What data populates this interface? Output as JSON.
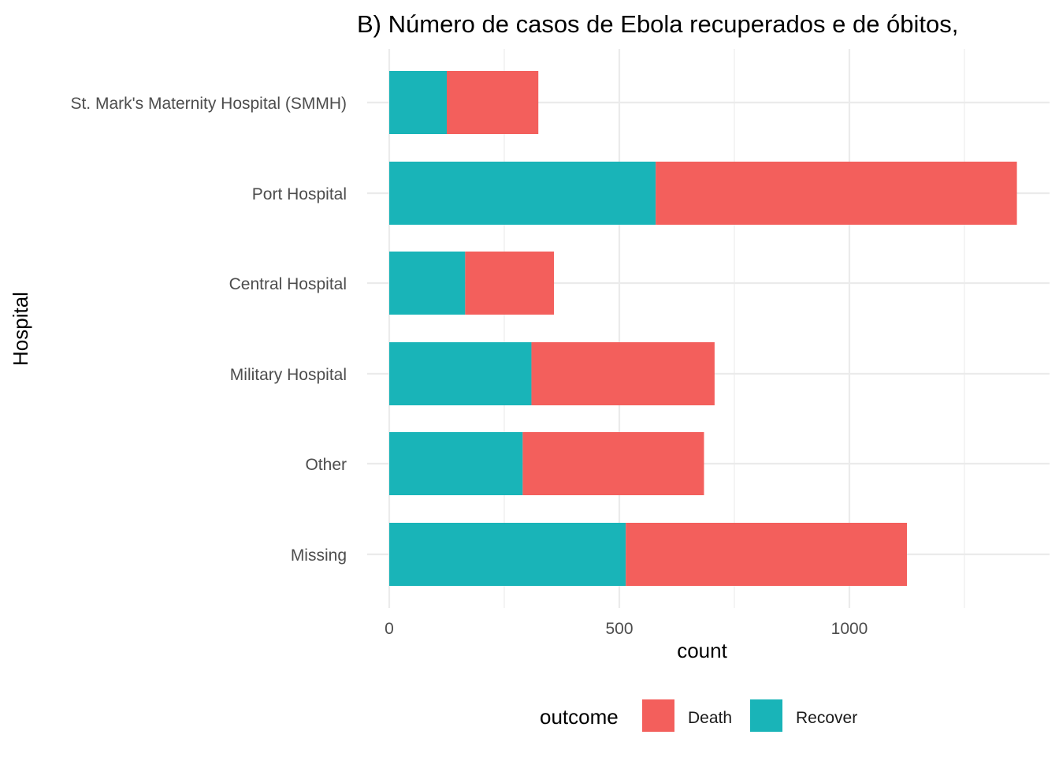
{
  "chart_data": {
    "type": "bar",
    "orientation": "horizontal",
    "stacked": true,
    "title": "B) Número de casos de Ebola recuperados e de óbitos,",
    "xlabel": "count",
    "ylabel": "Hospital",
    "xlim": [
      0,
      1400
    ],
    "x_ticks": [
      0,
      500,
      1000
    ],
    "grid": true,
    "legend": {
      "title": "outcome",
      "position": "bottom"
    },
    "categories": [
      "St. Mark's Maternity Hospital (SMMH)",
      "Port Hospital",
      "Central Hospital",
      "Military Hospital",
      "Other",
      "Missing"
    ],
    "series": [
      {
        "name": "Recover",
        "color": "#19b4b8",
        "values": [
          125,
          579,
          165,
          309,
          290,
          514
        ]
      },
      {
        "name": "Death",
        "color": "#f35f5c",
        "values": [
          199,
          785,
          193,
          398,
          394,
          611
        ]
      }
    ],
    "legend_order": [
      "Death",
      "Recover"
    ]
  }
}
